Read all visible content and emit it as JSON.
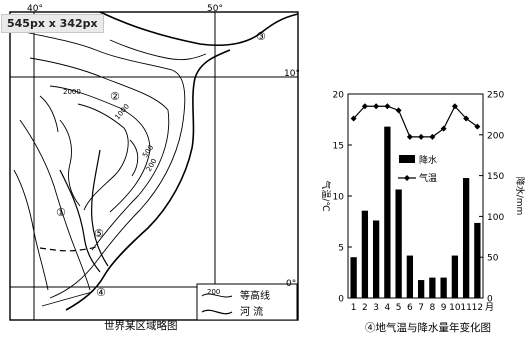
{
  "overlay": {
    "size_badge": "545px x 342px"
  },
  "map": {
    "title": "世界某区域略图",
    "lon_labels": [
      "40°",
      "50°"
    ],
    "lat_labels": [
      "10°",
      "0°"
    ],
    "contour_labels": [
      "2000",
      "1000",
      "500",
      "200"
    ],
    "markers": [
      "①",
      "②",
      "③",
      "④",
      "⑤"
    ],
    "legend": {
      "contour_sample": "200",
      "contour_label": "等高线",
      "river_label": "河 流"
    }
  },
  "chart_data": {
    "type": "bar+line",
    "title": "④地气温与降水量年变化图",
    "x": [
      1,
      2,
      3,
      4,
      5,
      6,
      7,
      8,
      9,
      10,
      11,
      12
    ],
    "xlabel_unit": "月",
    "ylabel_left": "气温/℃",
    "ylabel_right": "降水/mm",
    "ylim_left": [
      0,
      20
    ],
    "ylim_right": [
      0,
      250
    ],
    "left_ticks": [
      0,
      5,
      10,
      15,
      20
    ],
    "right_ticks": [
      0,
      50,
      100,
      150,
      200,
      250
    ],
    "series": [
      {
        "name": "降水",
        "kind": "bar",
        "axis": "right",
        "color": "#000000",
        "values": [
          50,
          107,
          95,
          210,
          133,
          52,
          22,
          25,
          25,
          52,
          147,
          92
        ]
      },
      {
        "name": "气温",
        "kind": "line",
        "axis": "left",
        "color": "#000000",
        "values": [
          17.6,
          18.8,
          18.8,
          18.8,
          18.4,
          15.8,
          15.8,
          15.8,
          16.6,
          18.8,
          17.6,
          16.8
        ]
      }
    ],
    "legend_position": "upper-center"
  }
}
